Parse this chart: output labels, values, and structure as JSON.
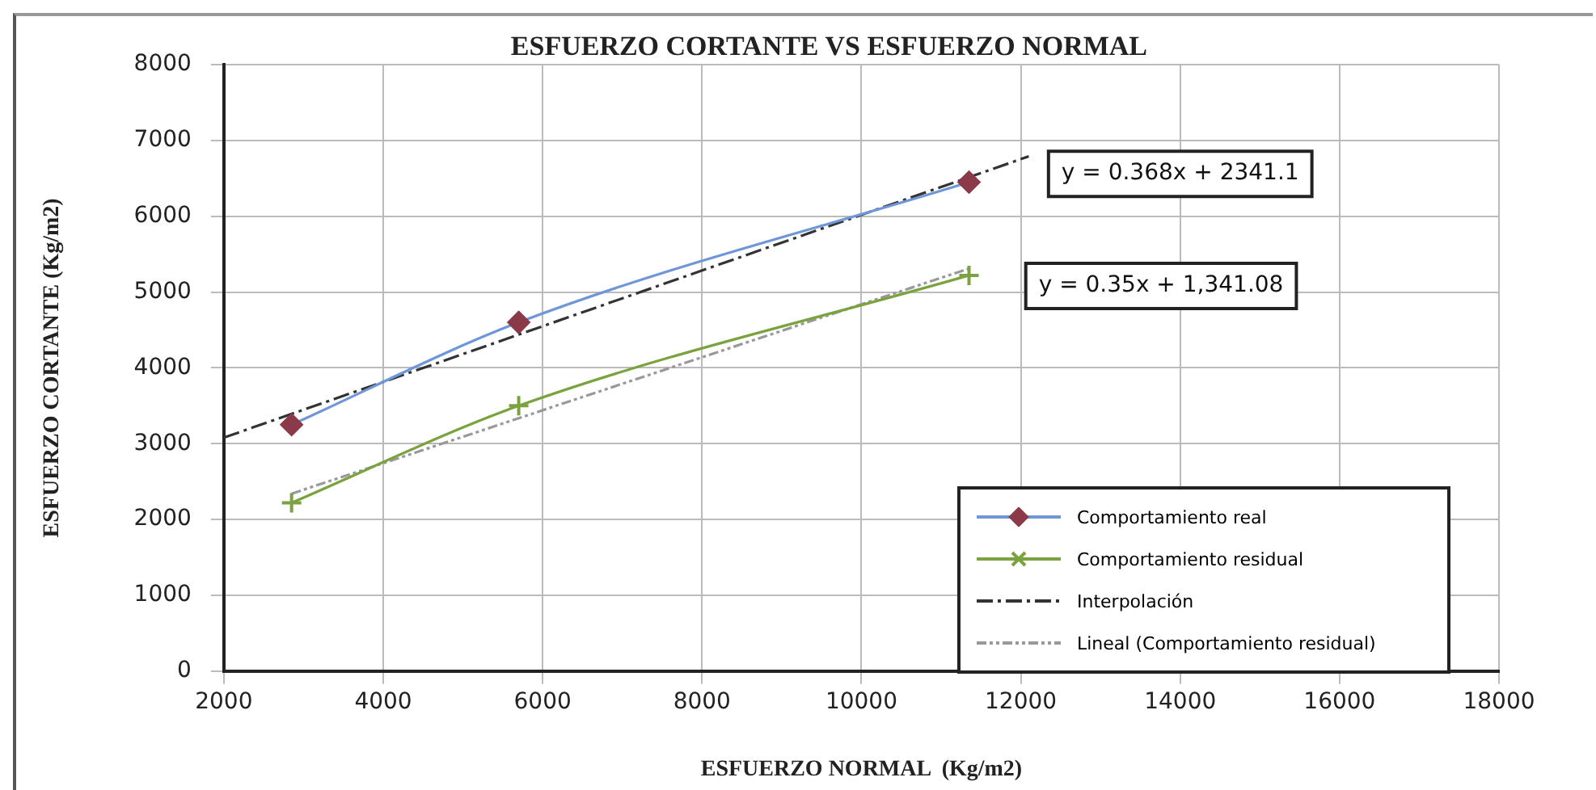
{
  "chart_data": {
    "type": "line",
    "title": "ESFUERZO CORTANTE VS ESFUERZO NORMAL",
    "xlabel": "ESFUERZO NORMAL  (Kg/m2)",
    "ylabel": "ESFUERZO CORTANTE (Kg/m2)",
    "x": [
      2850,
      5700,
      11350
    ],
    "series": [
      {
        "name": "Comportamiento real",
        "color": "#6f96d8",
        "colors": [
          "#8b3a4a",
          "#8b3a4a",
          "#8b3a4a"
        ],
        "marker": "diamond",
        "line_style": "solid",
        "values": [
          3250,
          4600,
          6450
        ]
      },
      {
        "name": "Comportamiento residual",
        "color": "#7ba23f",
        "marker": "cross",
        "line_style": "solid",
        "values": [
          2220,
          3500,
          5220
        ]
      },
      {
        "name": "Interpolación",
        "type": "line",
        "color": "#333333",
        "marker": "none",
        "line_style": "dashed",
        "x": [
          2000,
          12100
        ],
        "values": [
          3080,
          6790
        ]
      },
      {
        "name": "Lineal (Comportamiento residual)",
        "type": "line",
        "color": "#999999",
        "marker": "none",
        "line_style": "dotted",
        "x": [
          2850,
          11350
        ],
        "values": [
          2340,
          5310
        ]
      }
    ],
    "xlim": [
      2000,
      18000
    ],
    "xticks": [
      2000,
      4000,
      6000,
      8000,
      10000,
      12000,
      14000,
      16000,
      18000
    ],
    "ylim": [
      0,
      8000
    ],
    "yticks": [
      0,
      1000,
      2000,
      3000,
      4000,
      5000,
      6000,
      7000,
      8000
    ],
    "grid": true,
    "legend": "bottom right",
    "annotations": [
      "y = 0.368x + 2341.1",
      "y = 0.35x + 1,341.08"
    ]
  }
}
